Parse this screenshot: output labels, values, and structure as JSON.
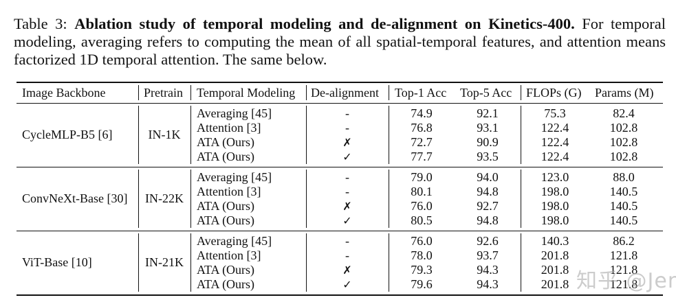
{
  "caption": {
    "label": "Table 3:",
    "bold_title": "Ablation study of temporal modeling and de-alignment on Kinetics-400.",
    "body": "For temporal modeling, averaging refers to computing the mean of all spatial-temporal features, and attention means factorized 1D temporal attention. The same below."
  },
  "table": {
    "headers": [
      "Image Backbone",
      "Pretrain",
      "Temporal Modeling",
      "De-alignment",
      "Top-1 Acc",
      "Top-5 Acc",
      "FLOPs (G)",
      "Params (M)"
    ],
    "groups": [
      {
        "backbone": "CycleMLP-B5 [6]",
        "pretrain": "IN-1K",
        "rows": [
          {
            "method": "Averaging [45]",
            "dealign": "-",
            "top1": "74.9",
            "top5": "92.1",
            "flops": "75.3",
            "params": "82.4"
          },
          {
            "method": "Attention [3]",
            "dealign": "-",
            "top1": "76.8",
            "top5": "93.1",
            "flops": "122.4",
            "params": "102.8"
          },
          {
            "method": "ATA (Ours)",
            "dealign": "✗",
            "top1": "72.7",
            "top5": "90.9",
            "flops": "122.4",
            "params": "102.8"
          },
          {
            "method": "ATA (Ours)",
            "dealign": "✓",
            "top1": "77.7",
            "top5": "93.5",
            "flops": "122.4",
            "params": "102.8"
          }
        ]
      },
      {
        "backbone": "ConvNeXt-Base [30]",
        "pretrain": "IN-22K",
        "rows": [
          {
            "method": "Averaging [45]",
            "dealign": "-",
            "top1": "79.0",
            "top5": "94.0",
            "flops": "123.0",
            "params": "88.0"
          },
          {
            "method": "Attention [3]",
            "dealign": "-",
            "top1": "80.1",
            "top5": "94.8",
            "flops": "198.0",
            "params": "140.5"
          },
          {
            "method": "ATA (Ours)",
            "dealign": "✗",
            "top1": "76.0",
            "top5": "92.7",
            "flops": "198.0",
            "params": "140.5"
          },
          {
            "method": "ATA (Ours)",
            "dealign": "✓",
            "top1": "80.5",
            "top5": "94.8",
            "flops": "198.0",
            "params": "140.5"
          }
        ]
      },
      {
        "backbone": "ViT-Base [10]",
        "pretrain": "IN-21K",
        "rows": [
          {
            "method": "Averaging [45]",
            "dealign": "-",
            "top1": "76.0",
            "top5": "92.6",
            "flops": "140.3",
            "params": "86.2"
          },
          {
            "method": "Attention [3]",
            "dealign": "-",
            "top1": "78.0",
            "top5": "93.7",
            "flops": "201.8",
            "params": "121.8"
          },
          {
            "method": "ATA (Ours)",
            "dealign": "✗",
            "top1": "79.3",
            "top5": "94.3",
            "flops": "201.8",
            "params": "121.8"
          },
          {
            "method": "ATA (Ours)",
            "dealign": "✓",
            "top1": "79.6",
            "top5": "94.3",
            "flops": "201.8",
            "params": "121.8"
          }
        ]
      }
    ]
  },
  "watermark": "知乎 @Jender"
}
